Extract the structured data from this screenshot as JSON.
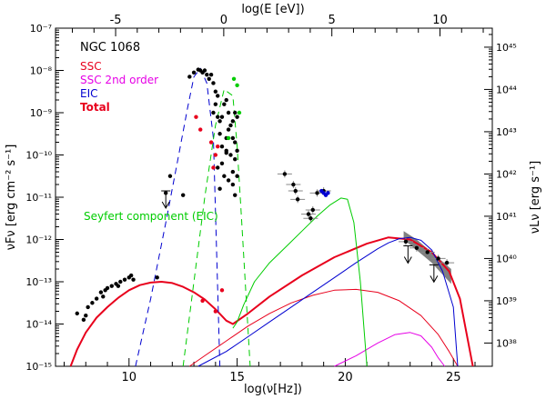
{
  "chart_data": {
    "type": "scatter",
    "title": "NGC 1068",
    "xlabel": "log(ν[Hz])",
    "ylabel_left": "νFν [erg cm⁻² s⁻¹]",
    "ylabel_right": "νLν [erg s⁻¹]",
    "xlabel_top": "log(E [eV])",
    "xlim": [
      6.6,
      26.8
    ],
    "ylim_log10": [
      -15,
      -7
    ],
    "x_ticks": [
      "10",
      "15",
      "20",
      "25"
    ],
    "x_tick_values": [
      10,
      15,
      20,
      25
    ],
    "top_ticks": [
      "-5",
      "0",
      "5",
      "10"
    ],
    "top_tick_values": [
      -5,
      0,
      5,
      10
    ],
    "y_ticks": [
      "10⁻¹⁵",
      "10⁻¹⁴",
      "10⁻¹³",
      "10⁻¹²",
      "10⁻¹¹",
      "10⁻¹⁰",
      "10⁻⁹",
      "10⁻⁸",
      "10⁻⁷"
    ],
    "y_tick_values": [
      -15,
      -14,
      -13,
      -12,
      -11,
      -10,
      -9,
      -8,
      -7
    ],
    "right_ticks": [
      "10³⁸",
      "10³⁹",
      "10⁴⁰",
      "10⁴¹",
      "10⁴²",
      "10⁴³",
      "10⁴⁴",
      "10⁴⁵"
    ],
    "right_tick_flux": [
      -14.45,
      -13.45,
      -12.45,
      -11.45,
      -10.45,
      -9.45,
      -8.45,
      -7.45
    ],
    "legend": [
      {
        "label": "SSC",
        "color": "#e8001c"
      },
      {
        "label": "SSC 2nd order",
        "color": "#e600e6"
      },
      {
        "label": "EIC",
        "color": "#0000d0"
      },
      {
        "label": "Total",
        "color": "#e8001c"
      }
    ],
    "annotation": {
      "text": "Seyfert component (EIC)",
      "color": "#00cc00",
      "x": 11.3,
      "y": -11.5
    },
    "series": [
      {
        "name": "Total",
        "color": "#e8001c",
        "style": "solid",
        "width": 2,
        "x": [
          7.3,
          7.6,
          8.0,
          8.5,
          9.0,
          9.5,
          10.0,
          10.5,
          11.0,
          11.5,
          12.0,
          12.5,
          13.0,
          13.5,
          14.0,
          14.5,
          14.8,
          15.5,
          16.5,
          18.0,
          19.5,
          21.0,
          22.0,
          23.0,
          24.0,
          24.8,
          25.3,
          25.6,
          25.9
        ],
        "y": [
          -15.0,
          -14.6,
          -14.2,
          -13.85,
          -13.6,
          -13.38,
          -13.2,
          -13.08,
          -13.02,
          -13.0,
          -13.03,
          -13.12,
          -13.25,
          -13.42,
          -13.65,
          -13.92,
          -14.0,
          -13.75,
          -13.35,
          -12.85,
          -12.42,
          -12.1,
          -11.95,
          -12.0,
          -12.3,
          -12.75,
          -13.4,
          -14.2,
          -15.0
        ]
      },
      {
        "name": "SSC",
        "color": "#e8001c",
        "style": "solid",
        "width": 1,
        "x": [
          12.8,
          13.5,
          14.5,
          15.5,
          16.5,
          17.5,
          18.5,
          19.5,
          20.5,
          21.5,
          22.5,
          23.5,
          24.3,
          24.8,
          25.2
        ],
        "y": [
          -15.0,
          -14.75,
          -14.4,
          -14.05,
          -13.75,
          -13.5,
          -13.32,
          -13.2,
          -13.18,
          -13.25,
          -13.45,
          -13.8,
          -14.25,
          -14.65,
          -15.0
        ]
      },
      {
        "name": "SSC 2nd order",
        "color": "#e600e6",
        "style": "solid",
        "width": 1,
        "x": [
          19.5,
          20.5,
          21.5,
          22.3,
          23.0,
          23.5,
          24.0,
          24.3,
          24.6
        ],
        "y": [
          -15.0,
          -14.75,
          -14.45,
          -14.25,
          -14.2,
          -14.28,
          -14.55,
          -14.8,
          -15.0
        ]
      },
      {
        "name": "EIC",
        "color": "#0000d0",
        "style": "solid",
        "width": 1,
        "x": [
          13.2,
          14.5,
          15.5,
          16.5,
          17.5,
          18.5,
          19.5,
          20.5,
          21.5,
          22.0,
          22.5,
          23.0,
          23.5,
          24.0,
          24.5,
          25.0,
          25.2
        ],
        "y": [
          -15.0,
          -14.65,
          -14.3,
          -13.95,
          -13.6,
          -13.25,
          -12.9,
          -12.55,
          -12.22,
          -12.08,
          -11.98,
          -11.95,
          -12.02,
          -12.25,
          -12.75,
          -13.6,
          -15.0
        ]
      },
      {
        "name": "Seyfert component (EIC)",
        "color": "#00cc00",
        "style": "solid",
        "width": 1,
        "x": [
          14.8,
          15.0,
          15.3,
          15.8,
          16.5,
          17.3,
          18.0,
          18.7,
          19.3,
          19.8,
          20.1,
          20.4,
          20.7,
          21.0
        ],
        "y": [
          -14.1,
          -13.95,
          -13.55,
          -13.0,
          -12.55,
          -12.15,
          -11.8,
          -11.45,
          -11.18,
          -11.02,
          -11.05,
          -11.6,
          -13.0,
          -15.0
        ]
      },
      {
        "name": "Disk component (dashed blue)",
        "color": "#0000d0",
        "style": "dashed",
        "width": 1,
        "x": [
          10.3,
          11.0,
          11.7,
          12.3,
          12.7,
          13.0,
          13.3,
          13.6,
          13.9,
          14.2
        ],
        "y": [
          -15.0,
          -13.4,
          -11.6,
          -10.0,
          -8.9,
          -8.15,
          -7.95,
          -8.3,
          -9.6,
          -15.0
        ]
      },
      {
        "name": "Dust component (dashed green)",
        "color": "#00cc00",
        "style": "dashed",
        "width": 1,
        "x": [
          12.5,
          13.0,
          13.5,
          14.0,
          14.4,
          14.8,
          15.0,
          15.2,
          15.6
        ],
        "y": [
          -15.0,
          -13.0,
          -11.0,
          -9.3,
          -8.45,
          -8.6,
          -9.8,
          -11.5,
          -15.0
        ]
      }
    ],
    "data_points": [
      {
        "name": "radio",
        "color": "#000000",
        "x": [
          7.6,
          7.9,
          8.1,
          8.3,
          8.5,
          8.7,
          8.9,
          9.0,
          9.2,
          9.4,
          9.6,
          9.8,
          10.0,
          10.2,
          8.0,
          8.8,
          9.5,
          10.1,
          11.3,
          11.7,
          11.9
        ],
        "y": [
          -13.75,
          -13.9,
          -13.6,
          -13.5,
          -13.4,
          -13.25,
          -13.2,
          -13.15,
          -13.1,
          -13.05,
          -13.0,
          -12.95,
          -12.9,
          -12.95,
          -13.8,
          -13.35,
          -13.1,
          -12.85,
          -12.9,
          -10.9,
          -10.5
        ]
      },
      {
        "name": "IR-optical",
        "color": "#000000",
        "x": [
          12.8,
          13.0,
          13.2,
          13.3,
          13.4,
          13.5,
          13.6,
          13.7,
          13.8,
          13.9,
          14.0,
          14.1,
          14.0,
          13.9,
          14.1,
          14.2,
          14.3,
          14.4,
          14.5,
          14.6,
          14.7,
          14.8,
          14.9,
          15.0,
          14.2,
          14.3,
          14.5,
          14.6,
          14.8,
          14.9,
          15.0,
          14.3,
          14.5,
          14.7,
          14.9,
          14.1,
          14.4,
          14.6,
          14.8,
          15.0,
          14.2,
          14.5,
          14.8,
          14.9,
          12.5
        ],
        "y": [
          -8.15,
          -8.05,
          -7.98,
          -8.0,
          -8.05,
          -8.0,
          -8.1,
          -8.2,
          -8.1,
          -8.3,
          -8.5,
          -8.6,
          -8.8,
          -9.0,
          -9.1,
          -9.2,
          -9.1,
          -8.8,
          -8.7,
          -9.0,
          -9.3,
          -9.2,
          -9.0,
          -9.1,
          -9.5,
          -9.8,
          -9.6,
          -9.4,
          -9.6,
          -9.7,
          -9.9,
          -10.2,
          -9.9,
          -10.0,
          -10.1,
          -10.3,
          -10.5,
          -10.6,
          -10.7,
          -10.5,
          -10.8,
          -9.95,
          -10.4,
          -10.95,
          -10.95
        ]
      },
      {
        "name": "red SSC points",
        "color": "#e8001c",
        "x": [
          13.1,
          13.3,
          13.8,
          14.1,
          14.0,
          13.9,
          13.4,
          14.0,
          14.3
        ],
        "y": [
          -9.1,
          -9.4,
          -9.7,
          -9.8,
          -10.0,
          -10.3,
          -13.45,
          -13.7,
          -13.2
        ]
      },
      {
        "name": "X-ray",
        "color": "#000000",
        "x": [
          17.2,
          17.6,
          17.7,
          17.8,
          18.3,
          18.4,
          18.5,
          18.7,
          19.0
        ],
        "y": [
          -10.45,
          -10.7,
          -10.85,
          -11.05,
          -11.4,
          -11.5,
          -11.3,
          -10.9,
          -10.85
        ]
      },
      {
        "name": "EIC points",
        "color": "#0000d0",
        "x": [
          18.9,
          19.0,
          19.1,
          19.2
        ],
        "y": [
          -10.85,
          -10.9,
          -10.95,
          -10.9
        ]
      },
      {
        "name": "gamma-ray",
        "color": "#000000",
        "x": [
          22.8,
          23.3,
          23.8,
          24.3,
          24.7
        ],
        "y": [
          -12.05,
          -12.2,
          -12.3,
          -12.45,
          -12.55
        ]
      },
      {
        "name": "green points",
        "color": "#00cc00",
        "x": [
          14.85,
          15.0,
          15.1,
          14.6
        ],
        "y": [
          -8.2,
          -8.35,
          -9.0,
          -9.6
        ]
      }
    ],
    "upper_limits": [
      {
        "x": 11.7,
        "y": -10.85
      },
      {
        "x": 22.9,
        "y": -12.15
      },
      {
        "x": 24.1,
        "y": -12.6
      }
    ],
    "gamma_band": {
      "x": [
        22.7,
        23.3,
        24.0,
        24.9,
        24.9,
        24.0,
        23.3,
        22.7
      ],
      "y": [
        -11.8,
        -12.0,
        -12.3,
        -12.7,
        -13.05,
        -12.55,
        -12.25,
        -12.0
      ]
    }
  }
}
